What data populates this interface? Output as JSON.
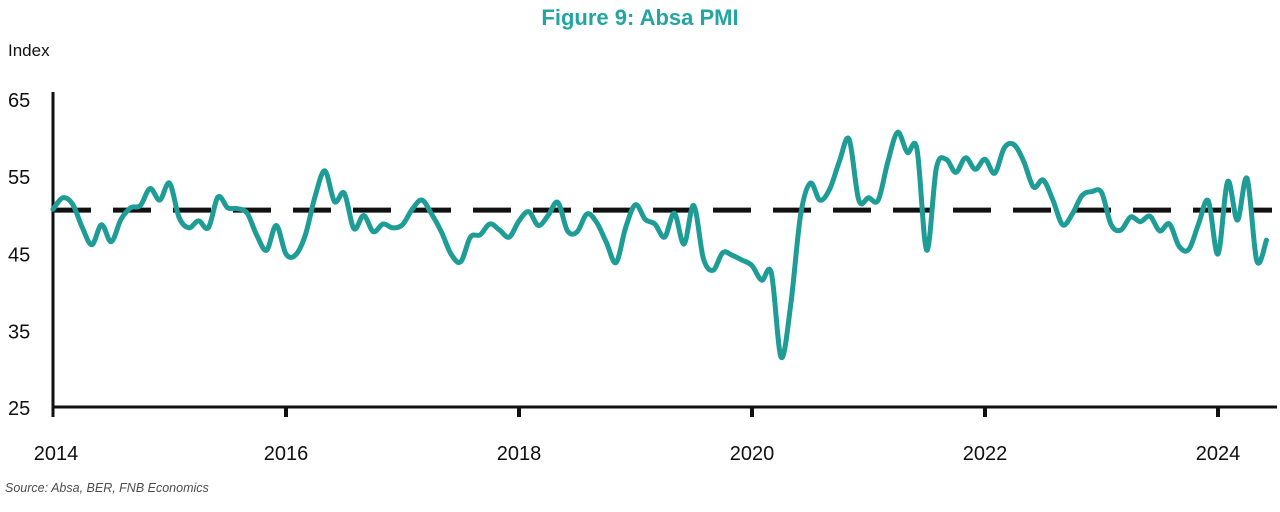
{
  "chart_data": {
    "type": "line",
    "title": "Figure 9: Absa PMI",
    "y_unit_label": "Index",
    "ylim": [
      25,
      65
    ],
    "y_tick_labels": [
      "65",
      "55",
      "45",
      "35",
      "25"
    ],
    "x_tick_labels": [
      "2014",
      "2016",
      "2018",
      "2020",
      "2022",
      "2024"
    ],
    "grid": "off",
    "legend": "none",
    "series": [
      {
        "name": "Absa PMI",
        "frequency": "monthly",
        "start": "2014-01",
        "end": "2024-06",
        "values": [
          50.8,
          52.3,
          51.5,
          48.5,
          46.2,
          48.8,
          46.6,
          49.5,
          51.0,
          51.3,
          53.5,
          52.0,
          54.2,
          49.7,
          48.4,
          49.3,
          48.4,
          52.4,
          51.0,
          50.9,
          50.3,
          47.4,
          45.5,
          48.7,
          45.0,
          44.9,
          47.5,
          52.5,
          55.8,
          51.8,
          52.9,
          48.3,
          50.0,
          47.9,
          48.9,
          48.4,
          48.8,
          50.8,
          52.0,
          50.2,
          47.9,
          45.0,
          44.0,
          47.2,
          47.5,
          48.9,
          48.1,
          47.2,
          49.3,
          50.5,
          48.7,
          50.0,
          51.7,
          48.0,
          47.9,
          50.2,
          49.1,
          46.5,
          43.9,
          48.5,
          51.4,
          49.5,
          48.9,
          47.2,
          50.3,
          46.3,
          51.3,
          44.4,
          42.9,
          45.2,
          44.8,
          44.2,
          43.5,
          41.6,
          42.5,
          31.6,
          38.5,
          50.0,
          54.2,
          52.0,
          53.4,
          57.0,
          59.9,
          52.0,
          52.3,
          52.0,
          57.0,
          60.8,
          58.2,
          58.6,
          45.5,
          56.2,
          57.3,
          55.6,
          57.5,
          56.0,
          57.3,
          55.5,
          58.8,
          59.2,
          57.0,
          53.7,
          54.6,
          52.0,
          48.8,
          50.2,
          52.6,
          53.1,
          53.0,
          48.8,
          48.1,
          49.8,
          49.2,
          49.9,
          48.0,
          48.9,
          46.0,
          45.6,
          48.9,
          51.9,
          45.0,
          54.4,
          49.4,
          54.8,
          44.1,
          46.8
        ]
      }
    ],
    "reference_line": {
      "style": "dashed",
      "value": 50.7
    },
    "source_note": "Source: Absa, BER, FNB Economics",
    "colors": {
      "line": "#1E9C96",
      "title": "#23A5A3",
      "axis": "#111111",
      "reference_line": "#111111",
      "source_text": "#4d4d4d"
    }
  }
}
